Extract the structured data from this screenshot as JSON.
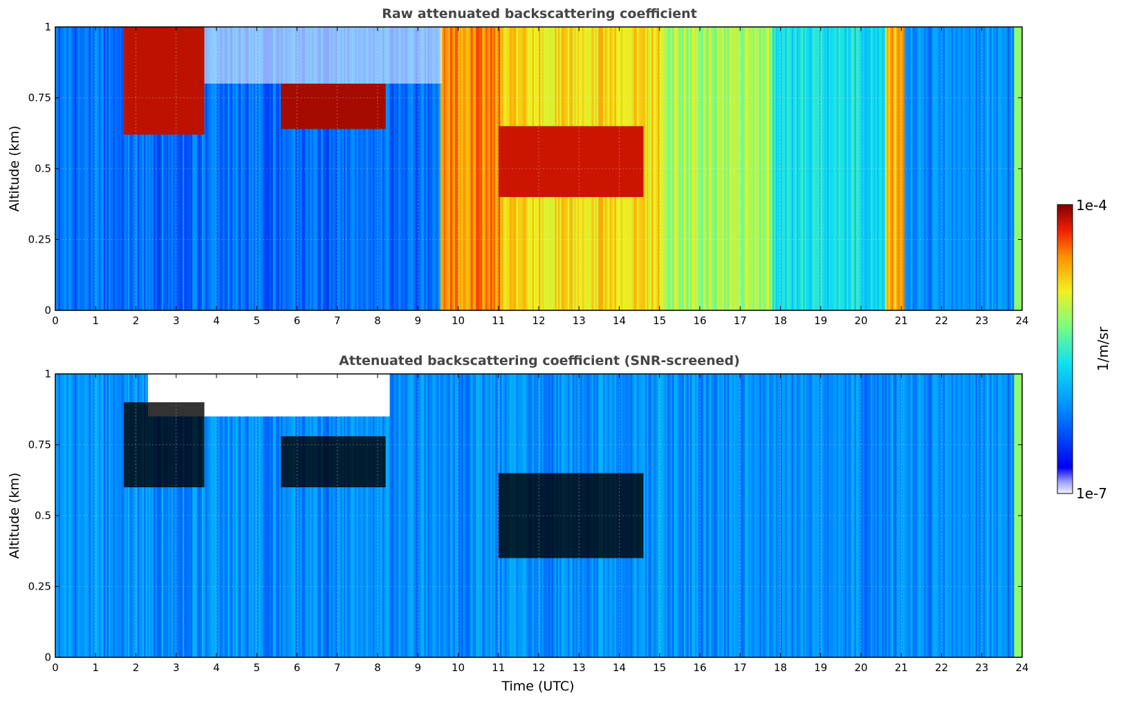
{
  "chart_data": [
    {
      "type": "heatmap",
      "title": "Raw attenuated backscattering coefficient",
      "xlabel": "",
      "ylabel": "Altitude (km)",
      "xlim": [
        0,
        24
      ],
      "ylim": [
        0,
        1
      ],
      "x_ticks": [
        "0",
        "1",
        "2",
        "3",
        "4",
        "5",
        "6",
        "7",
        "8",
        "9",
        "10",
        "11",
        "12",
        "13",
        "14",
        "15",
        "16",
        "17",
        "18",
        "19",
        "20",
        "21",
        "22",
        "23",
        "24"
      ],
      "y_ticks": [
        "0",
        "0.25",
        "0.5",
        "0.75",
        "1"
      ],
      "grid": true,
      "screened": false,
      "features": [
        {
          "label": "clear boundary layer",
          "t_start": 0.0,
          "t_end": 9.5,
          "level": 0.25
        },
        {
          "label": "upper noise",
          "t_start": 2.2,
          "t_end": 9.6,
          "alt_bottom": 0.8,
          "level": "below colour range"
        },
        {
          "label": "cloud",
          "t_start": 1.7,
          "t_end": 3.7,
          "alt_bottom": 0.62,
          "alt_top": 1.0,
          "level": 0.95
        },
        {
          "label": "cloud",
          "t_start": 5.6,
          "t_end": 8.2,
          "alt_bottom": 0.64,
          "alt_top": 0.8,
          "level": 0.97
        },
        {
          "label": "fog / precipitation",
          "t_start": 9.55,
          "t_end": 11.1,
          "level": 0.82
        },
        {
          "label": "haze",
          "t_start": 11.1,
          "t_end": 15.0,
          "level": 0.72
        },
        {
          "label": "cloud",
          "t_start": 11.0,
          "t_end": 14.6,
          "alt_bottom": 0.4,
          "alt_top": 0.65,
          "level": 0.94
        },
        {
          "label": "haze",
          "t_start": 15.0,
          "t_end": 17.8,
          "level": 0.62
        },
        {
          "label": "haze",
          "t_start": 17.8,
          "t_end": 20.6,
          "level": 0.45
        },
        {
          "label": "haze",
          "t_start": 20.6,
          "t_end": 21.1,
          "level": 0.78
        },
        {
          "label": "clear",
          "t_start": 21.1,
          "t_end": 23.8,
          "level": 0.3
        }
      ]
    },
    {
      "type": "heatmap",
      "title": "Attenuated backscattering coefficient (SNR-screened)",
      "xlabel": "Time (UTC)",
      "ylabel": "Altitude (km)",
      "xlim": [
        0,
        24
      ],
      "ylim": [
        0,
        1
      ],
      "x_ticks": [
        "0",
        "1",
        "2",
        "3",
        "4",
        "5",
        "6",
        "7",
        "8",
        "9",
        "10",
        "11",
        "12",
        "13",
        "14",
        "15",
        "16",
        "17",
        "18",
        "19",
        "20",
        "21",
        "22",
        "23",
        "24"
      ],
      "y_ticks": [
        "0",
        "0.25",
        "0.5",
        "0.75",
        "1"
      ],
      "grid": true,
      "screened": true,
      "features": [
        {
          "label": "screened (low SNR)",
          "t_start": 2.3,
          "t_end": 8.3,
          "alt_bottom": 0.85,
          "level": "masked"
        },
        {
          "label": "cloud",
          "t_start": 1.7,
          "t_end": 3.7,
          "alt_bottom": 0.6,
          "alt_top": 0.9,
          "level": "above colour range"
        },
        {
          "label": "cloud",
          "t_start": 5.6,
          "t_end": 8.2,
          "alt_bottom": 0.6,
          "alt_top": 0.78,
          "level": "above colour range"
        },
        {
          "label": "cloud",
          "t_start": 11.0,
          "t_end": 14.6,
          "alt_bottom": 0.35,
          "alt_top": 0.65,
          "level": "above colour range"
        }
      ]
    }
  ],
  "colorbar": {
    "label": "1/m/sr",
    "max_label": "1e-4",
    "min_label": "1e-7",
    "range": [
      1e-07,
      0.0001
    ],
    "scale": "log",
    "colormap": "jet"
  }
}
